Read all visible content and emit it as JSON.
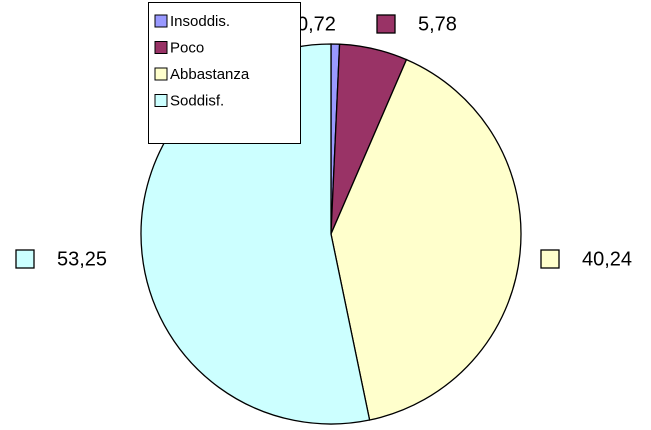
{
  "chart_data": {
    "type": "pie",
    "categories": [
      "Insoddis.",
      "Poco",
      "Abbastanza",
      "Soddisf."
    ],
    "values": [
      0.72,
      5.78,
      40.24,
      53.25
    ],
    "value_labels": [
      "0,72",
      "5,78",
      "40,24",
      "53,25"
    ],
    "colors": [
      "#9999ff",
      "#993366",
      "#ffffcc",
      "#ccffff"
    ],
    "legend": "top-left"
  }
}
